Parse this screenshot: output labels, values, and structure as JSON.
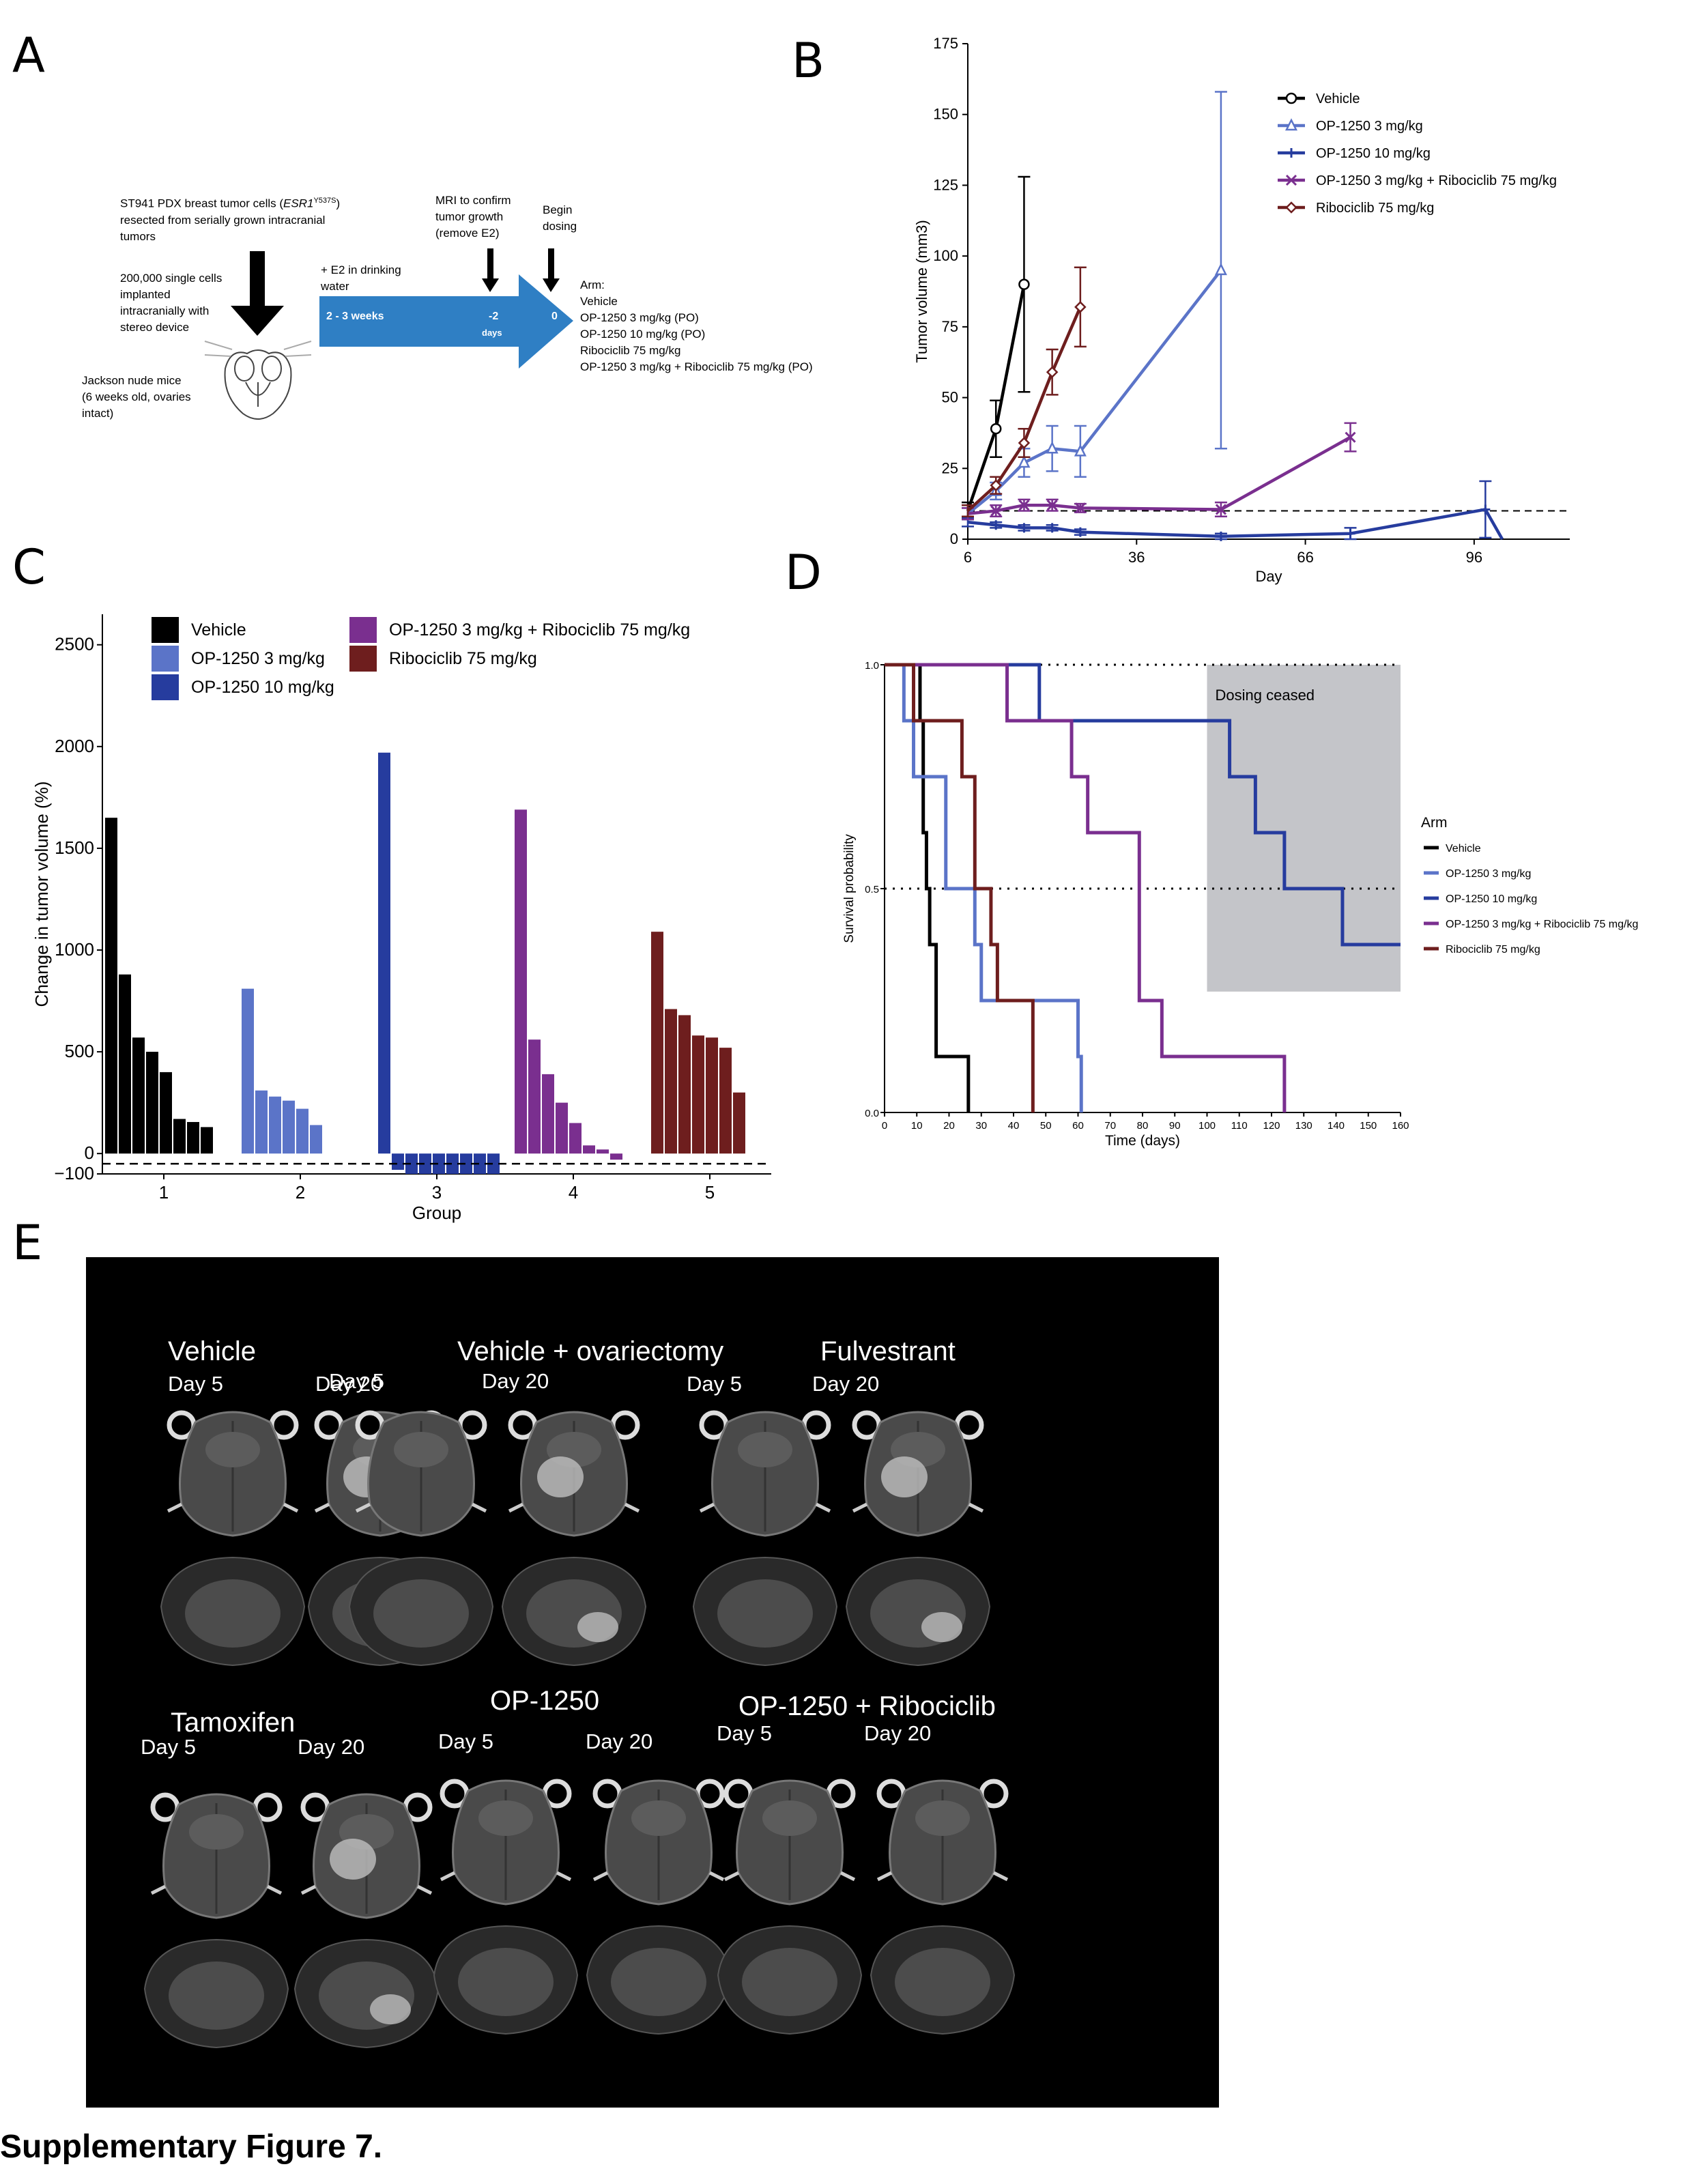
{
  "figure_caption": "Supplementary Figure 7.",
  "panels": {
    "A": "A",
    "B": "B",
    "C": "C",
    "D": "D",
    "E": "E"
  },
  "colors": {
    "vehicle": "#000000",
    "op3": "#5b74c8",
    "op10": "#263c9e",
    "combo": "#7a2f8f",
    "ribo": "#6e1e1e",
    "arrow": "#2f7fc4",
    "dosing": "#c4c5c9"
  },
  "panelA": {
    "tumor_cells_line1": "ST941 PDX breast tumor  cells (",
    "tumor_cells_gene": "ESR1",
    "tumor_cells_mut": "Y537S",
    "tumor_cells_line1_end": ")",
    "tumor_cells_line2": "resected from serially grown intracranial",
    "tumor_cells_line3": "tumors",
    "implant_lines": [
      "200,000 single cells",
      "implanted",
      "intracranially with",
      "stereo device"
    ],
    "mice_lines": [
      "Jackson nude mice",
      "(6 weeks old, ovaries",
      "intact)"
    ],
    "e2_lines": [
      "+ E2 in drinking",
      "water"
    ],
    "mri_lines": [
      "MRI to confirm",
      "tumor growth",
      "(remove E2)"
    ],
    "begin_lines": [
      "Begin",
      "dosing"
    ],
    "arrow_duration": "2 - 3 weeks",
    "arrow_minus2": "-2",
    "arrow_days": "days",
    "arrow_zero": "0",
    "arm_title": "Arm:",
    "arms": [
      "Vehicle",
      "OP-1250 3 mg/kg (PO)",
      "OP-1250 10 mg/kg (PO)",
      "Ribociclib 75 mg/kg",
      "OP-1250 3 mg/kg + Ribociclib 75 mg/kg (PO)"
    ]
  },
  "chart_data": [
    {
      "id": "B",
      "type": "line",
      "xlabel": "Day",
      "ylabel": "Tumor volume (mm3)",
      "xlim": [
        6,
        113
      ],
      "ylim": [
        0,
        175
      ],
      "xticks": [
        6,
        36,
        66,
        96
      ],
      "yticks": [
        0,
        25,
        50,
        75,
        100,
        125,
        150,
        175
      ],
      "reference_line": 10,
      "series": [
        {
          "name": "Vehicle",
          "color": "#000000",
          "marker": "circle",
          "x": [
            6,
            11,
            16
          ],
          "y": [
            10,
            39,
            90
          ],
          "err": [
            3,
            10,
            38
          ]
        },
        {
          "name": "OP-1250 3 mg/kg",
          "color": "#5b74c8",
          "marker": "triangle",
          "x": [
            6,
            11,
            16,
            21,
            26,
            51
          ],
          "y": [
            9,
            17,
            27,
            32,
            31,
            95
          ],
          "err": [
            2,
            3,
            5,
            8,
            9,
            63
          ]
        },
        {
          "name": "OP-1250 10 mg/kg",
          "color": "#263c9e",
          "marker": "plus",
          "x": [
            6,
            11,
            16,
            21,
            26,
            51,
            74,
            98,
            101
          ],
          "y": [
            6,
            5,
            4,
            4,
            2.5,
            1,
            2,
            10.5,
            0
          ],
          "err": [
            1.5,
            1,
            1,
            1,
            1,
            1,
            2,
            10,
            0
          ]
        },
        {
          "name": "OP-1250 3 mg/kg + Ribociclib 75 mg/kg",
          "color": "#7a2f8f",
          "marker": "x",
          "x": [
            6,
            11,
            16,
            21,
            26,
            51,
            74
          ],
          "y": [
            9,
            10,
            12,
            12,
            11,
            10.5,
            36
          ],
          "err": [
            2,
            2,
            2,
            2,
            1.5,
            2.5,
            5
          ]
        },
        {
          "name": "Ribociclib 75 mg/kg",
          "color": "#6e1e1e",
          "marker": "diamond",
          "x": [
            6,
            11,
            16,
            21,
            26
          ],
          "y": [
            10,
            19,
            34,
            59,
            82
          ],
          "err": [
            2,
            3,
            5,
            8,
            14
          ]
        }
      ]
    },
    {
      "id": "C",
      "type": "bar",
      "xlabel": "Group",
      "ylabel": "Change in tumor volume (%)",
      "ylim": [
        -100,
        2650
      ],
      "yticks": [
        -100,
        0,
        500,
        1000,
        1500,
        2000,
        2500
      ],
      "reference_line": -50,
      "groups": [
        "1",
        "2",
        "3",
        "4",
        "5"
      ],
      "series": [
        {
          "name": "Vehicle",
          "color": "#000000",
          "group": "1",
          "values": [
            1650,
            880,
            570,
            500,
            400,
            170,
            155,
            130
          ]
        },
        {
          "name": "OP-1250 3 mg/kg",
          "color": "#5b74c8",
          "group": "2",
          "values": [
            810,
            310,
            280,
            260,
            220,
            140
          ]
        },
        {
          "name": "OP-1250 10 mg/kg",
          "color": "#263c9e",
          "group": "3",
          "values": [
            1970,
            -80,
            -100,
            -100,
            -100,
            -100,
            -100,
            -100,
            -100
          ]
        },
        {
          "name": "OP-1250 3 mg/kg + Ribociclib 75 mg/kg",
          "color": "#7a2f8f",
          "group": "4",
          "values": [
            1690,
            560,
            390,
            250,
            150,
            40,
            20,
            -30
          ]
        },
        {
          "name": "Ribociclib 75 mg/kg",
          "color": "#6e1e1e",
          "group": "5",
          "values": [
            1090,
            710,
            680,
            580,
            570,
            520,
            300
          ]
        }
      ]
    },
    {
      "id": "D",
      "type": "line",
      "subtype": "kaplan-meier",
      "xlabel": "Time (days)",
      "ylabel": "Survival probability",
      "xlim": [
        0,
        160
      ],
      "ylim": [
        0,
        1
      ],
      "xticks": [
        0,
        10,
        20,
        30,
        40,
        50,
        60,
        70,
        80,
        90,
        100,
        110,
        120,
        130,
        140,
        150,
        160
      ],
      "yticks": [
        "0.0",
        "0.5",
        "1.0"
      ],
      "legend_title": "Arm",
      "shaded_label": "Dosing ceased",
      "shaded_x": [
        100,
        160
      ],
      "shaded_y": [
        0.27,
        1.0
      ],
      "series": [
        {
          "name": "Vehicle",
          "color": "#000000",
          "x": [
            0,
            11,
            12,
            13,
            14,
            16,
            17,
            26
          ],
          "y": [
            1,
            0.875,
            0.625,
            0.5,
            0.375,
            0.125,
            0.125,
            0
          ]
        },
        {
          "name": "OP-1250 3 mg/kg",
          "color": "#5b74c8",
          "x": [
            0,
            6,
            9,
            17,
            19,
            28,
            30,
            51,
            60,
            61
          ],
          "y": [
            1,
            0.875,
            0.75,
            0.75,
            0.5,
            0.375,
            0.25,
            0.25,
            0.125,
            0
          ]
        },
        {
          "name": "OP-1250 10 mg/kg",
          "color": "#263c9e",
          "x": [
            0,
            47,
            48,
            98,
            107,
            112,
            115,
            124,
            142,
            160
          ],
          "y": [
            1,
            1,
            0.875,
            0.875,
            0.75,
            0.75,
            0.625,
            0.5,
            0.375,
            0.375
          ]
        },
        {
          "name": "OP-1250 3 mg/kg + Ribociclib 75 mg/kg",
          "color": "#7a2f8f",
          "x": [
            0,
            37,
            38,
            58,
            63,
            70,
            79,
            86,
            124
          ],
          "y": [
            1,
            1,
            0.875,
            0.75,
            0.625,
            0.625,
            0.25,
            0.125,
            0
          ]
        },
        {
          "name": "Ribociclib 75 mg/kg",
          "color": "#6e1e1e",
          "x": [
            0,
            9,
            14,
            24,
            28,
            33,
            35,
            46
          ],
          "y": [
            1,
            0.875,
            0.875,
            0.75,
            0.5,
            0.375,
            0.25,
            0
          ]
        }
      ]
    }
  ],
  "panelE": {
    "groups": [
      {
        "title": "Vehicle",
        "days": [
          "Day 5",
          "Day 20"
        ]
      },
      {
        "title": "Vehicle + ovariectomy",
        "days": [
          "Day 5",
          "Day 20"
        ]
      },
      {
        "title": "Fulvestrant",
        "days": [
          "Day 5",
          "Day 20"
        ]
      },
      {
        "title": "Tamoxifen",
        "days": [
          "Day 5",
          "Day 20"
        ]
      },
      {
        "title": "OP-1250",
        "days": [
          "Day 5",
          "Day 20"
        ]
      },
      {
        "title": "OP-1250 + Ribociclib",
        "days": [
          "Day 5",
          "Day 20"
        ]
      }
    ]
  }
}
